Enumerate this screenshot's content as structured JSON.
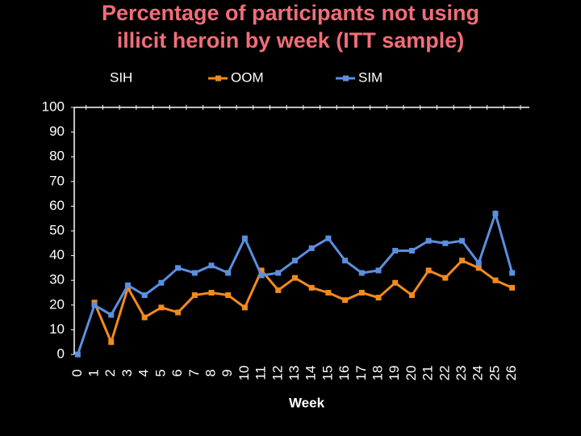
{
  "chart_data": {
    "type": "line",
    "title": [
      "Percentage of participants not using",
      "illicit heroin by week (ITT sample)"
    ],
    "x_label": "Week",
    "categories": [
      "0",
      "1",
      "2",
      "3",
      "4",
      "5",
      "6",
      "7",
      "8",
      "9",
      "10",
      "11",
      "12",
      "13",
      "14",
      "15",
      "16",
      "17",
      "18",
      "19",
      "20",
      "21",
      "22",
      "23",
      "24",
      "25",
      "26"
    ],
    "series": [
      {
        "name": "SIH",
        "color": "#000000",
        "values": [
          null,
          null,
          null,
          null,
          null,
          null,
          null,
          null,
          null,
          null,
          null,
          null,
          null,
          null,
          null,
          null,
          null,
          null,
          null,
          null,
          null,
          null,
          null,
          null,
          null,
          null,
          null
        ]
      },
      {
        "name": "OOM",
        "color": "#f28a1e",
        "values": [
          null,
          21,
          5,
          27,
          15,
          19,
          17,
          24,
          25,
          24,
          19,
          34,
          26,
          31,
          27,
          25,
          22,
          25,
          23,
          29,
          24,
          34,
          31,
          38,
          35,
          30,
          27
        ]
      },
      {
        "name": "SIM",
        "color": "#5b8fe0",
        "values": [
          0,
          20,
          16,
          28,
          24,
          29,
          35,
          33,
          36,
          33,
          47,
          32,
          33,
          38,
          43,
          47,
          38,
          33,
          34,
          42,
          42,
          46,
          45,
          46,
          37,
          57,
          33
        ]
      }
    ],
    "ylim": [
      0,
      100
    ],
    "yticks": [
      0,
      10,
      20,
      30,
      40,
      50,
      60,
      70,
      80,
      90,
      100
    ],
    "grid": false,
    "legend": "top"
  }
}
